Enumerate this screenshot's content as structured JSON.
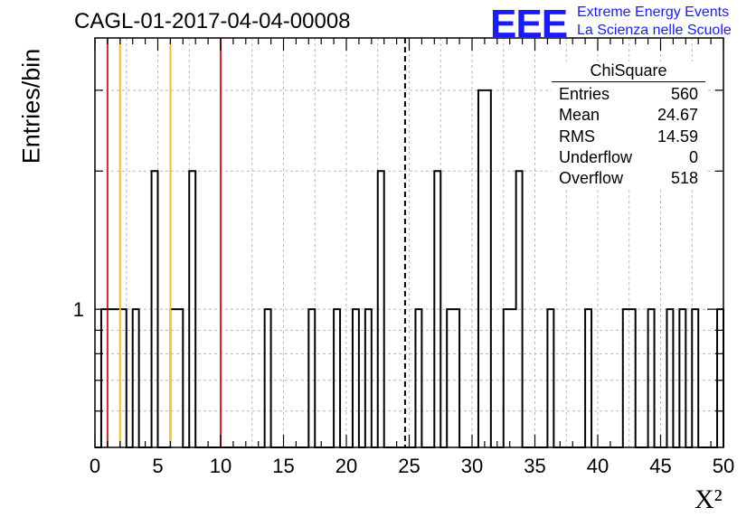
{
  "chart_data": {
    "type": "bar",
    "title": "CAGL-01-2017-04-04-00008",
    "xlabel": "X²",
    "ylabel": "Entries/bin",
    "xlim": [
      0,
      50
    ],
    "ylog": true,
    "ylim": [
      0.5,
      3.9
    ],
    "x_ticks": [
      "0",
      "5",
      "10",
      "15",
      "20",
      "25",
      "30",
      "35",
      "40",
      "45",
      "50"
    ],
    "y_tick_labels": [
      "1"
    ],
    "grid": true,
    "bin_width": 0.5,
    "bins": [
      {
        "x": 0.0,
        "y": 0
      },
      {
        "x": 0.5,
        "y": 1
      },
      {
        "x": 1.0,
        "y": 1
      },
      {
        "x": 1.5,
        "y": 1
      },
      {
        "x": 2.0,
        "y": 1
      },
      {
        "x": 3.0,
        "y": 1
      },
      {
        "x": 4.5,
        "y": 2
      },
      {
        "x": 6.0,
        "y": 1
      },
      {
        "x": 6.5,
        "y": 1
      },
      {
        "x": 7.5,
        "y": 2
      },
      {
        "x": 13.5,
        "y": 1
      },
      {
        "x": 17.0,
        "y": 1
      },
      {
        "x": 19.0,
        "y": 1
      },
      {
        "x": 20.5,
        "y": 1
      },
      {
        "x": 21.5,
        "y": 1
      },
      {
        "x": 22.5,
        "y": 2
      },
      {
        "x": 25.5,
        "y": 1
      },
      {
        "x": 27.0,
        "y": 2
      },
      {
        "x": 28.0,
        "y": 1
      },
      {
        "x": 28.5,
        "y": 1
      },
      {
        "x": 30.5,
        "y": 3
      },
      {
        "x": 31.0,
        "y": 3
      },
      {
        "x": 32.5,
        "y": 1
      },
      {
        "x": 33.0,
        "y": 1
      },
      {
        "x": 33.5,
        "y": 2
      },
      {
        "x": 36.0,
        "y": 1
      },
      {
        "x": 39.0,
        "y": 1
      },
      {
        "x": 42.0,
        "y": 1
      },
      {
        "x": 42.5,
        "y": 1
      },
      {
        "x": 44.0,
        "y": 1
      },
      {
        "x": 45.5,
        "y": 1
      },
      {
        "x": 46.5,
        "y": 1
      },
      {
        "x": 47.5,
        "y": 1
      },
      {
        "x": 49.5,
        "y": 1
      }
    ],
    "reference_lines": [
      {
        "x": 1.0,
        "color": "#dd2222",
        "style": "solid"
      },
      {
        "x": 2.0,
        "color": "#f5c020",
        "style": "solid"
      },
      {
        "x": 6.0,
        "color": "#f5c020",
        "style": "solid"
      },
      {
        "x": 10.0,
        "color": "#dd2222",
        "style": "solid"
      },
      {
        "x": 24.67,
        "color": "#000000",
        "style": "dashed"
      }
    ],
    "stats_box": {
      "name": "ChiSquare",
      "rows": [
        {
          "label": "Entries",
          "value": "560"
        },
        {
          "label": "Mean",
          "value": "24.67"
        },
        {
          "label": "RMS",
          "value": "14.59"
        },
        {
          "label": "Underflow",
          "value": "0"
        },
        {
          "label": "Overflow",
          "value": "518"
        }
      ]
    }
  },
  "logo": {
    "text": "EEE",
    "line1": "Extreme Energy Events",
    "line2": "La Scienza nelle Scuole"
  }
}
